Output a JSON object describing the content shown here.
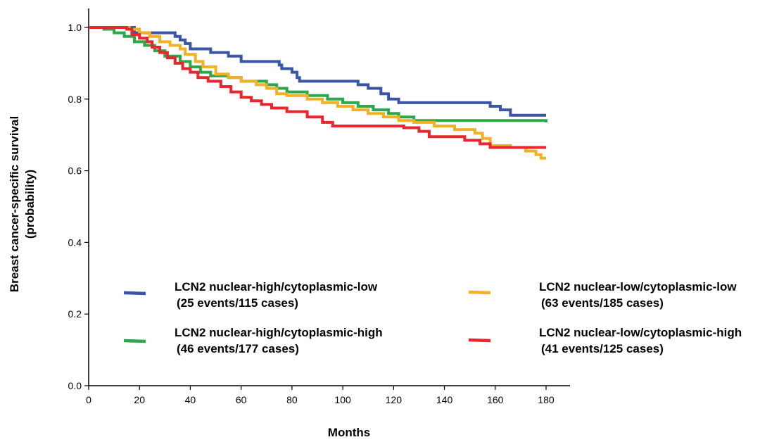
{
  "chart_data": {
    "type": "line",
    "xlabel": "Months",
    "ylabel": "Breast cancer-specific survival",
    "ylabel_line2": "(probability)",
    "xlim": [
      0,
      180
    ],
    "ylim": [
      0,
      1
    ],
    "x_ticks": [
      0,
      20,
      40,
      60,
      80,
      100,
      120,
      140,
      160,
      180
    ],
    "y_ticks": [
      "0.0",
      "0.2",
      "0.4",
      "0.6",
      "0.8",
      "1.0"
    ],
    "grid": false,
    "series": [
      {
        "name": "LCN2 nuclear-high/cytoplasmic-low",
        "name_line2": "(25 events/115 cases)",
        "color": "#3b55a6",
        "step_points": [
          [
            0,
            1.0
          ],
          [
            12,
            1.0
          ],
          [
            18,
            0.985
          ],
          [
            32,
            0.985
          ],
          [
            34,
            0.975
          ],
          [
            36,
            0.965
          ],
          [
            38,
            0.955
          ],
          [
            40,
            0.94
          ],
          [
            48,
            0.93
          ],
          [
            55,
            0.92
          ],
          [
            60,
            0.905
          ],
          [
            75,
            0.895
          ],
          [
            76,
            0.885
          ],
          [
            80,
            0.875
          ],
          [
            82,
            0.86
          ],
          [
            83,
            0.85
          ],
          [
            106,
            0.84
          ],
          [
            110,
            0.83
          ],
          [
            115,
            0.815
          ],
          [
            118,
            0.8
          ],
          [
            122,
            0.79
          ],
          [
            158,
            0.78
          ],
          [
            162,
            0.77
          ],
          [
            166,
            0.755
          ],
          [
            180,
            0.755
          ]
        ]
      },
      {
        "name": "LCN2 nuclear-high/cytoplasmic-high",
        "name_line2": "(46 events/177 cases)",
        "color": "#2aa84a",
        "step_points": [
          [
            0,
            1.0
          ],
          [
            6,
            0.995
          ],
          [
            10,
            0.985
          ],
          [
            14,
            0.975
          ],
          [
            18,
            0.96
          ],
          [
            22,
            0.95
          ],
          [
            26,
            0.935
          ],
          [
            30,
            0.92
          ],
          [
            36,
            0.905
          ],
          [
            40,
            0.89
          ],
          [
            44,
            0.875
          ],
          [
            48,
            0.865
          ],
          [
            55,
            0.86
          ],
          [
            60,
            0.85
          ],
          [
            70,
            0.84
          ],
          [
            74,
            0.83
          ],
          [
            78,
            0.82
          ],
          [
            86,
            0.81
          ],
          [
            94,
            0.8
          ],
          [
            100,
            0.79
          ],
          [
            106,
            0.78
          ],
          [
            112,
            0.77
          ],
          [
            118,
            0.76
          ],
          [
            122,
            0.75
          ],
          [
            128,
            0.74
          ],
          [
            178,
            0.74
          ],
          [
            180,
            0.735
          ]
        ]
      },
      {
        "name": "LCN2 nuclear-low/cytoplasmic-low",
        "name_line2": "(63 events/185 cases)",
        "color": "#f2b024",
        "step_points": [
          [
            0,
            1.0
          ],
          [
            16,
            0.995
          ],
          [
            20,
            0.985
          ],
          [
            24,
            0.975
          ],
          [
            28,
            0.96
          ],
          [
            32,
            0.95
          ],
          [
            36,
            0.94
          ],
          [
            38,
            0.925
          ],
          [
            42,
            0.905
          ],
          [
            45,
            0.89
          ],
          [
            50,
            0.87
          ],
          [
            55,
            0.86
          ],
          [
            60,
            0.85
          ],
          [
            66,
            0.84
          ],
          [
            70,
            0.83
          ],
          [
            74,
            0.815
          ],
          [
            78,
            0.81
          ],
          [
            86,
            0.8
          ],
          [
            92,
            0.79
          ],
          [
            98,
            0.78
          ],
          [
            104,
            0.77
          ],
          [
            110,
            0.76
          ],
          [
            116,
            0.75
          ],
          [
            122,
            0.74
          ],
          [
            128,
            0.735
          ],
          [
            136,
            0.725
          ],
          [
            144,
            0.715
          ],
          [
            152,
            0.705
          ],
          [
            155,
            0.69
          ],
          [
            158,
            0.67
          ],
          [
            166,
            0.665
          ],
          [
            172,
            0.655
          ],
          [
            176,
            0.645
          ],
          [
            178,
            0.635
          ],
          [
            180,
            0.635
          ]
        ]
      },
      {
        "name": "LCN2 nuclear-low/cytoplasmic-high",
        "name_line2": "(41 events/125 cases)",
        "color": "#e8262e",
        "step_points": [
          [
            0,
            1.0
          ],
          [
            15,
            0.995
          ],
          [
            17,
            0.98
          ],
          [
            20,
            0.97
          ],
          [
            23,
            0.96
          ],
          [
            25,
            0.945
          ],
          [
            28,
            0.93
          ],
          [
            31,
            0.915
          ],
          [
            34,
            0.9
          ],
          [
            37,
            0.885
          ],
          [
            40,
            0.875
          ],
          [
            43,
            0.86
          ],
          [
            47,
            0.85
          ],
          [
            52,
            0.835
          ],
          [
            56,
            0.82
          ],
          [
            60,
            0.805
          ],
          [
            64,
            0.795
          ],
          [
            68,
            0.785
          ],
          [
            72,
            0.775
          ],
          [
            78,
            0.765
          ],
          [
            86,
            0.75
          ],
          [
            92,
            0.735
          ],
          [
            96,
            0.725
          ],
          [
            118,
            0.725
          ],
          [
            124,
            0.72
          ],
          [
            130,
            0.71
          ],
          [
            134,
            0.695
          ],
          [
            148,
            0.685
          ],
          [
            154,
            0.675
          ],
          [
            158,
            0.665
          ],
          [
            180,
            0.665
          ]
        ]
      }
    ]
  }
}
